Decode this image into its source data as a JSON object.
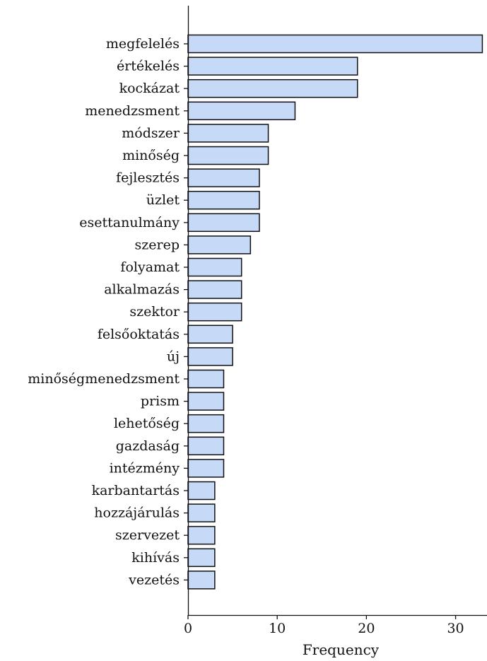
{
  "chart_data": {
    "type": "bar",
    "orientation": "horizontal",
    "title": "",
    "xlabel": "Frequency",
    "ylabel": "",
    "xlim": [
      0,
      33.6
    ],
    "xticks": [
      0,
      10,
      20,
      30
    ],
    "grid": false,
    "colors": {
      "bar_fill": "#c6d9f7",
      "bar_edge": "#111111",
      "axis": "#111111"
    },
    "categories": [
      "megfelelés",
      "értékelés",
      "kockázat",
      "menedzsment",
      "módszer",
      "minőség",
      "fejlesztés",
      "üzlet",
      "esettanulmány",
      "szerep",
      "folyamat",
      "alkalmazás",
      "szektor",
      "felsőoktatás",
      "új",
      "minőségmenedzsment",
      "prism",
      "lehetőség",
      "gazdaság",
      "intézmény",
      "karbantartás",
      "hozzájárulás",
      "szervezet",
      "kihívás",
      "vezetés"
    ],
    "values": [
      33,
      19,
      19,
      12,
      9,
      9,
      8,
      8,
      8,
      7,
      6,
      6,
      6,
      5,
      5,
      4,
      4,
      4,
      4,
      4,
      3,
      3,
      3,
      3,
      3
    ]
  }
}
